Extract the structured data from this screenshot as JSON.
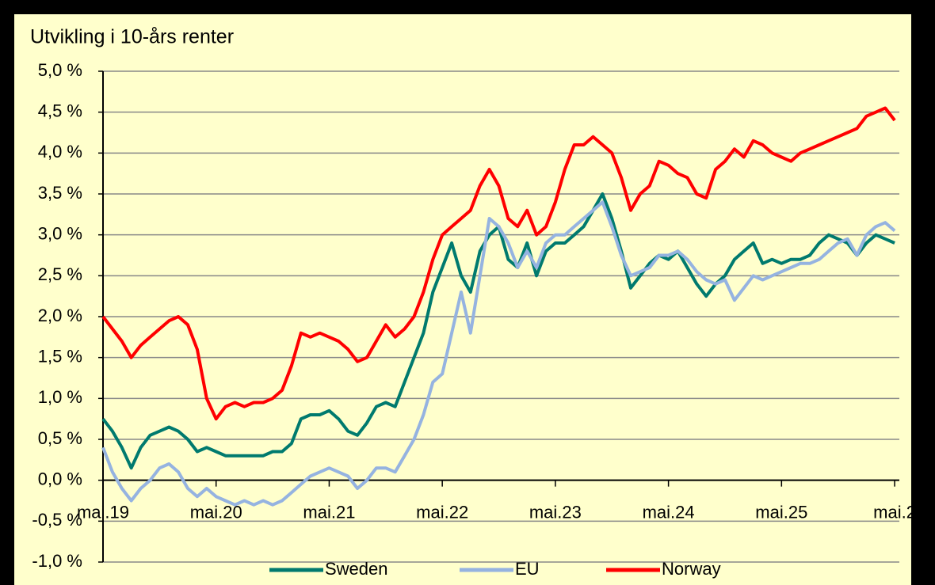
{
  "chart_data": {
    "type": "line",
    "title": "Utvikling i 10-års renter",
    "xlim": [
      0,
      84.5
    ],
    "xticks": [
      {
        "value": 0,
        "label": "mai.19"
      },
      {
        "value": 12,
        "label": "mai.20"
      },
      {
        "value": 24,
        "label": "mai.21"
      },
      {
        "value": 36,
        "label": "mai.22"
      },
      {
        "value": 48,
        "label": "mai.23"
      },
      {
        "value": 60,
        "label": "mai.24"
      },
      {
        "value": 72,
        "label": "mai.25"
      },
      {
        "value": 84,
        "label": "mai.2"
      }
    ],
    "ylim": [
      -1,
      5
    ],
    "yticks": [
      {
        "value": -1,
        "label": "-1,0 %"
      },
      {
        "value": -0.5,
        "label": "-0,5 %"
      },
      {
        "value": 0,
        "label": "0,0 %"
      },
      {
        "value": 0.5,
        "label": "0,5 %"
      },
      {
        "value": 1,
        "label": "1,0 %"
      },
      {
        "value": 1.5,
        "label": "1,5 %"
      },
      {
        "value": 2,
        "label": "2,0 %"
      },
      {
        "value": 2.5,
        "label": "2,5 %"
      },
      {
        "value": 3,
        "label": "3,0 %"
      },
      {
        "value": 3.5,
        "label": "3,5 %"
      },
      {
        "value": 4,
        "label": "4,0 %"
      },
      {
        "value": 4.5,
        "label": "4,5 %"
      },
      {
        "value": 5,
        "label": "5,0 %"
      }
    ],
    "grid": true,
    "legend": "bottom",
    "x": [
      0,
      1,
      2,
      3,
      4,
      5,
      6,
      7,
      8,
      9,
      10,
      11,
      12,
      13,
      14,
      15,
      16,
      17,
      18,
      19,
      20,
      21,
      22,
      23,
      24,
      25,
      26,
      27,
      28,
      29,
      30,
      31,
      32,
      33,
      34,
      35,
      36,
      37,
      38,
      39,
      40,
      41,
      42,
      43,
      44,
      45,
      46,
      47,
      48,
      49,
      50,
      51,
      52,
      53,
      54,
      55,
      56,
      57,
      58,
      59,
      60,
      61,
      62,
      63,
      64,
      65,
      66,
      67,
      68,
      69,
      70,
      71,
      72,
      73,
      74,
      75,
      76,
      77,
      78,
      79,
      80,
      81,
      82,
      83,
      84
    ],
    "series": [
      {
        "name": "Sweden",
        "color": "#007a6e",
        "values": [
          0.75,
          0.6,
          0.4,
          0.15,
          0.4,
          0.55,
          0.6,
          0.65,
          0.6,
          0.5,
          0.35,
          0.4,
          0.35,
          0.3,
          0.3,
          0.3,
          0.3,
          0.3,
          0.35,
          0.35,
          0.45,
          0.75,
          0.8,
          0.8,
          0.85,
          0.75,
          0.6,
          0.55,
          0.7,
          0.9,
          0.95,
          0.9,
          1.2,
          1.5,
          1.8,
          2.3,
          2.6,
          2.9,
          2.5,
          2.3,
          2.8,
          3.0,
          3.1,
          2.7,
          2.6,
          2.9,
          2.5,
          2.8,
          2.9,
          2.9,
          3.0,
          3.1,
          3.3,
          3.5,
          3.2,
          2.8,
          2.35,
          2.5,
          2.65,
          2.75,
          2.7,
          2.8,
          2.6,
          2.4,
          2.25,
          2.4,
          2.5,
          2.7,
          2.8,
          2.9,
          2.65,
          2.7,
          2.65,
          2.7,
          2.7,
          2.75,
          2.9,
          3.0,
          2.95,
          2.9,
          2.75,
          2.9,
          3.0,
          2.95,
          2.9
        ]
      },
      {
        "name": "EU",
        "color": "#95b3e0",
        "values": [
          0.4,
          0.1,
          -0.1,
          -0.25,
          -0.1,
          0.0,
          0.15,
          0.2,
          0.1,
          -0.1,
          -0.2,
          -0.1,
          -0.2,
          -0.25,
          -0.3,
          -0.25,
          -0.3,
          -0.25,
          -0.3,
          -0.25,
          -0.15,
          -0.05,
          0.05,
          0.1,
          0.15,
          0.1,
          0.05,
          -0.1,
          0.0,
          0.15,
          0.15,
          0.1,
          0.3,
          0.5,
          0.8,
          1.2,
          1.3,
          1.8,
          2.3,
          1.8,
          2.5,
          3.2,
          3.1,
          2.9,
          2.6,
          2.8,
          2.6,
          2.9,
          3.0,
          3.0,
          3.1,
          3.2,
          3.3,
          3.4,
          3.1,
          2.75,
          2.5,
          2.55,
          2.6,
          2.75,
          2.75,
          2.8,
          2.7,
          2.55,
          2.45,
          2.4,
          2.45,
          2.2,
          2.35,
          2.5,
          2.45,
          2.5,
          2.55,
          2.6,
          2.65,
          2.65,
          2.7,
          2.8,
          2.9,
          2.95,
          2.75,
          3.0,
          3.1,
          3.15,
          3.05
        ]
      },
      {
        "name": "Norway",
        "color": "#ff0000",
        "values": [
          2.0,
          1.85,
          1.7,
          1.5,
          1.65,
          1.75,
          1.85,
          1.95,
          2.0,
          1.9,
          1.6,
          1.0,
          0.75,
          0.9,
          0.95,
          0.9,
          0.95,
          0.95,
          1.0,
          1.1,
          1.4,
          1.8,
          1.75,
          1.8,
          1.75,
          1.7,
          1.6,
          1.45,
          1.5,
          1.7,
          1.9,
          1.75,
          1.85,
          2.0,
          2.3,
          2.7,
          3.0,
          3.1,
          3.2,
          3.3,
          3.6,
          3.8,
          3.6,
          3.2,
          3.1,
          3.3,
          3.0,
          3.1,
          3.4,
          3.8,
          4.1,
          4.1,
          4.2,
          4.1,
          4.0,
          3.7,
          3.3,
          3.5,
          3.6,
          3.9,
          3.85,
          3.75,
          3.7,
          3.5,
          3.45,
          3.8,
          3.9,
          4.05,
          3.95,
          4.15,
          4.1,
          4.0,
          3.95,
          3.9,
          4.0,
          4.05,
          4.1,
          4.15,
          4.2,
          4.25,
          4.3,
          4.45,
          4.5,
          4.55,
          4.4
        ]
      }
    ]
  }
}
